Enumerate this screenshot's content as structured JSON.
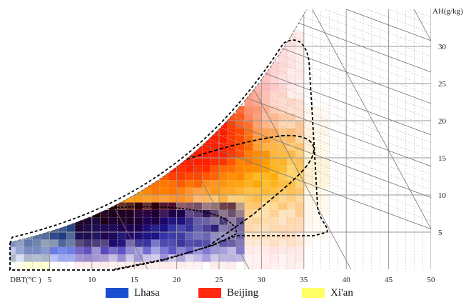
{
  "chart_data": {
    "type": "heatmap",
    "title": "",
    "xlabel": "DBT(°C )",
    "ylabel": "AH(g/kg)",
    "xlim": [
      0,
      50
    ],
    "ylim": [
      0,
      35
    ],
    "x_ticks": [
      "5",
      "10",
      "15",
      "20",
      "25",
      "30",
      "35",
      "40",
      "45",
      "50"
    ],
    "y_ticks": [
      "5",
      "10",
      "15",
      "20",
      "25",
      "30"
    ],
    "grid": true,
    "legend_position": "bottom",
    "series": [
      {
        "name": "Lhasa",
        "color": "#1a4fd0",
        "dbt_range": [
          0,
          27
        ],
        "ah_range": [
          1,
          8.5
        ],
        "peak": {
          "dbt": 13,
          "ah": 6
        }
      },
      {
        "name": "Beijing",
        "color": "#ff2a10",
        "dbt_range": [
          8,
          37
        ],
        "ah_range": [
          2,
          30
        ],
        "peak": {
          "dbt": 22,
          "ah": 17
        }
      },
      {
        "name": "Xi'an",
        "color": "#ffff66",
        "dbt_range": [
          0,
          37
        ],
        "ah_range": [
          3,
          22
        ],
        "peak": {
          "dbt": 28,
          "ah": 14
        }
      }
    ],
    "envelopes": [
      "overall comfort zone",
      "Lhasa zone",
      "summer zone"
    ]
  }
}
